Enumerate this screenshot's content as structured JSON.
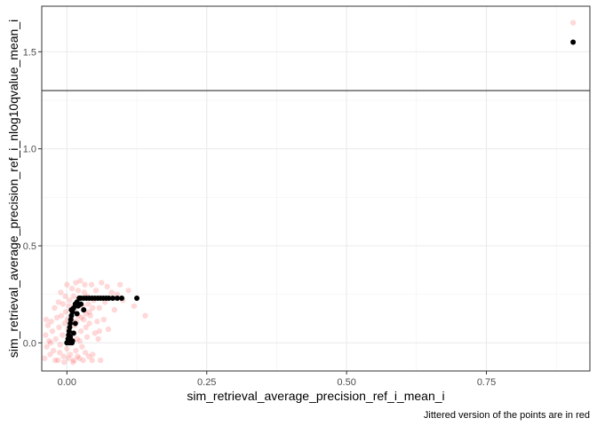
{
  "chart_data": {
    "type": "scatter",
    "xlabel": "sim_retrieval_average_precision_ref_i_mean_i",
    "ylabel": "sim_retrieval_average_precision_ref_i_nlog10qvalue_mean_i",
    "caption": "Jittered version of the points are in red",
    "xlim": [
      -0.045,
      0.935
    ],
    "ylim": [
      -0.145,
      1.735
    ],
    "x_ticks": [
      0.0,
      0.25,
      0.5,
      0.75
    ],
    "x_tick_labels": [
      "0.00",
      "0.25",
      "0.50",
      "0.75"
    ],
    "y_ticks": [
      0.0,
      0.5,
      1.0,
      1.5
    ],
    "y_tick_labels": [
      "0.0",
      "0.5",
      "1.0",
      "1.5"
    ],
    "reference_line": {
      "type": "horizontal",
      "y": 1.3,
      "color": "#333333"
    },
    "grid": true,
    "theme": "bw",
    "colors": {
      "points": "#000000",
      "jittered": "#ff0000"
    },
    "series": [
      {
        "name": "points",
        "color": "#000000",
        "points": [
          [
            0.905,
            1.55
          ],
          [
            0.125,
            0.23
          ],
          [
            0.098,
            0.23
          ],
          [
            0.09,
            0.23
          ],
          [
            0.082,
            0.23
          ],
          [
            0.075,
            0.23
          ],
          [
            0.07,
            0.23
          ],
          [
            0.065,
            0.23
          ],
          [
            0.06,
            0.23
          ],
          [
            0.055,
            0.23
          ],
          [
            0.05,
            0.23
          ],
          [
            0.045,
            0.23
          ],
          [
            0.04,
            0.23
          ],
          [
            0.035,
            0.23
          ],
          [
            0.03,
            0.23
          ],
          [
            0.025,
            0.23
          ],
          [
            0.022,
            0.23
          ],
          [
            0.018,
            0.21
          ],
          [
            0.015,
            0.2
          ],
          [
            0.012,
            0.18
          ],
          [
            0.01,
            0.16
          ],
          [
            0.008,
            0.14
          ],
          [
            0.007,
            0.12
          ],
          [
            0.006,
            0.1
          ],
          [
            0.005,
            0.08
          ],
          [
            0.004,
            0.06
          ],
          [
            0.003,
            0.04
          ],
          [
            0.002,
            0.02
          ],
          [
            0.0,
            0.0
          ],
          [
            0.005,
            0.0
          ],
          [
            0.01,
            0.01
          ],
          [
            0.012,
            0.05
          ],
          [
            0.015,
            0.1
          ],
          [
            0.018,
            0.15
          ],
          [
            0.02,
            0.19
          ],
          [
            0.025,
            0.2
          ],
          [
            0.03,
            0.17
          ],
          [
            0.008,
            0.17
          ],
          [
            0.006,
            0.03
          ],
          [
            0.009,
            0.0
          ]
        ]
      },
      {
        "name": "jittered",
        "color": "#ff0000",
        "opacity": 0.15,
        "points": [
          [
            0.905,
            1.65
          ],
          [
            0.14,
            0.14
          ],
          [
            0.12,
            0.19
          ],
          [
            0.11,
            0.27
          ],
          [
            0.1,
            0.22
          ],
          [
            0.095,
            0.3
          ],
          [
            0.09,
            0.25
          ],
          [
            0.085,
            0.17
          ],
          [
            0.08,
            0.26
          ],
          [
            0.072,
            0.29
          ],
          [
            0.068,
            0.21
          ],
          [
            0.062,
            0.31
          ],
          [
            0.058,
            0.18
          ],
          [
            0.052,
            0.27
          ],
          [
            0.048,
            0.22
          ],
          [
            0.044,
            0.3
          ],
          [
            0.04,
            0.16
          ],
          [
            0.036,
            0.24
          ],
          [
            0.032,
            0.3
          ],
          [
            0.028,
            0.19
          ],
          [
            0.024,
            0.32
          ],
          [
            0.02,
            0.27
          ],
          [
            0.016,
            0.31
          ],
          [
            0.012,
            0.24
          ],
          [
            0.04,
            0.1
          ],
          [
            0.036,
            0.03
          ],
          [
            0.033,
            -0.05
          ],
          [
            0.03,
            0.12
          ],
          [
            0.027,
            -0.02
          ],
          [
            0.025,
            0.06
          ],
          [
            0.022,
            -0.08
          ],
          [
            0.02,
            0.14
          ],
          [
            0.018,
            0.02
          ],
          [
            0.016,
            -0.04
          ],
          [
            0.014,
            0.09
          ],
          [
            0.012,
            -0.09
          ],
          [
            0.01,
            0.05
          ],
          [
            0.008,
            0.12
          ],
          [
            0.006,
            -0.06
          ],
          [
            0.004,
            0.19
          ],
          [
            0.002,
            0.07
          ],
          [
            0.0,
            -0.03
          ],
          [
            -0.002,
            0.16
          ],
          [
            -0.004,
            0.1
          ],
          [
            -0.006,
            -0.07
          ],
          [
            -0.008,
            0.04
          ],
          [
            -0.01,
            0.14
          ],
          [
            -0.012,
            -0.01
          ],
          [
            -0.014,
            0.08
          ],
          [
            -0.016,
            -0.09
          ],
          [
            -0.018,
            0.13
          ],
          [
            -0.02,
            0.02
          ],
          [
            -0.022,
            0.18
          ],
          [
            -0.024,
            -0.04
          ],
          [
            -0.026,
            0.06
          ],
          [
            -0.028,
            0.11
          ],
          [
            -0.03,
            -0.06
          ],
          [
            -0.032,
            0.01
          ],
          [
            -0.034,
            0.09
          ],
          [
            -0.036,
            -0.02
          ],
          [
            -0.038,
            0.04
          ],
          [
            -0.04,
            -0.08
          ],
          [
            0.05,
            0.05
          ],
          [
            0.046,
            -0.06
          ],
          [
            0.042,
            0.14
          ],
          [
            0.038,
            0.2
          ],
          [
            0.034,
            0.08
          ],
          [
            0.031,
            0.26
          ],
          [
            0.026,
            0.13
          ],
          [
            0.021,
            0.23
          ],
          [
            0.017,
            0.11
          ],
          [
            0.013,
            0.17
          ],
          [
            0.009,
            0.28
          ],
          [
            0.005,
            0.22
          ],
          [
            0.001,
            0.12
          ],
          [
            -0.003,
            0.24
          ],
          [
            -0.007,
            0.2
          ],
          [
            -0.011,
            0.26
          ],
          [
            -0.015,
            0.21
          ],
          [
            0.0,
            0.3
          ],
          [
            0.06,
            -0.09
          ],
          [
            0.056,
            0.02
          ],
          [
            0.054,
            0.11
          ],
          [
            0.045,
            -0.09
          ],
          [
            0.039,
            -0.07
          ],
          [
            0.029,
            -0.09
          ],
          [
            0.019,
            -0.07
          ],
          [
            0.011,
            -0.1
          ],
          [
            0.003,
            -0.08
          ],
          [
            -0.005,
            -0.1
          ],
          [
            -0.013,
            -0.05
          ],
          [
            -0.021,
            -0.09
          ],
          [
            -0.029,
            0.0
          ],
          [
            -0.037,
            0.12
          ],
          [
            0.074,
            0.07
          ],
          [
            0.066,
            0.12
          ],
          [
            0.058,
            0.06
          ],
          [
            0.046,
            0.18
          ],
          [
            0.034,
            0.15
          ],
          [
            0.023,
            0.01
          ]
        ]
      }
    ]
  }
}
